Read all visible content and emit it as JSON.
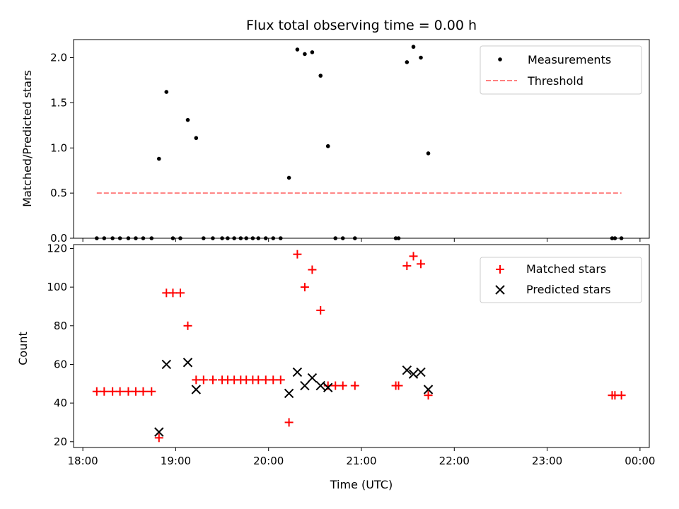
{
  "chart_data": [
    {
      "type": "scatter",
      "title": "Flux total observing time = 0.00 h",
      "xlabel": "",
      "ylabel": "Matched/Predicted stars",
      "ylim": [
        0,
        2.2
      ],
      "xlim": [
        17.9,
        24.1
      ],
      "yticks": [
        0.0,
        0.5,
        1.0,
        1.5,
        2.0
      ],
      "ytick_labels": [
        "0.0",
        "0.5",
        "1.0",
        "1.5",
        "2.0"
      ],
      "legend_position": "top-right",
      "series": [
        {
          "name": "Measurements",
          "marker": "dot",
          "color": "#000000",
          "x": [
            18.15,
            18.23,
            18.32,
            18.4,
            18.49,
            18.57,
            18.65,
            18.74,
            18.82,
            18.9,
            18.97,
            19.05,
            19.13,
            19.22,
            19.3,
            19.4,
            19.5,
            19.56,
            19.63,
            19.7,
            19.76,
            19.83,
            19.89,
            19.97,
            20.05,
            20.13,
            20.22,
            20.31,
            20.39,
            20.47,
            20.56,
            20.64,
            20.72,
            20.8,
            20.93,
            21.37,
            21.4,
            21.49,
            21.56,
            21.64,
            21.72,
            23.7,
            23.73,
            23.8
          ],
          "y": [
            0,
            0,
            0,
            0,
            0,
            0,
            0,
            0,
            0.88,
            1.62,
            0,
            0,
            1.31,
            1.11,
            0,
            0,
            0,
            0,
            0,
            0,
            0,
            0,
            0,
            0,
            0,
            0,
            0.67,
            2.09,
            2.04,
            2.06,
            1.8,
            1.02,
            0,
            0,
            0,
            0,
            0,
            1.95,
            2.12,
            2.0,
            0.94,
            0,
            0,
            0
          ]
        },
        {
          "name": "Threshold",
          "marker": "dashed-line",
          "color": "#ff8080",
          "x": [
            18.15,
            23.8
          ],
          "y": [
            0.5,
            0.5
          ]
        }
      ]
    },
    {
      "type": "scatter",
      "title": "",
      "xlabel": "Time (UTC)",
      "ylabel": "Count",
      "ylim": [
        17,
        122
      ],
      "xlim": [
        17.9,
        24.1
      ],
      "yticks": [
        20,
        40,
        60,
        80,
        100,
        120
      ],
      "ytick_labels": [
        "20",
        "40",
        "60",
        "80",
        "100",
        "120"
      ],
      "xticks": [
        18,
        19,
        20,
        21,
        22,
        23,
        24
      ],
      "xtick_labels": [
        "18:00",
        "19:00",
        "20:00",
        "21:00",
        "22:00",
        "23:00",
        "00:00"
      ],
      "legend_position": "top-right",
      "series": [
        {
          "name": "Matched stars",
          "marker": "plus",
          "color": "#ff0000",
          "x": [
            18.15,
            18.23,
            18.32,
            18.4,
            18.49,
            18.57,
            18.65,
            18.74,
            18.82,
            18.9,
            18.97,
            19.05,
            19.13,
            19.22,
            19.3,
            19.4,
            19.5,
            19.56,
            19.63,
            19.7,
            19.76,
            19.83,
            19.89,
            19.97,
            20.05,
            20.13,
            20.22,
            20.31,
            20.39,
            20.47,
            20.56,
            20.64,
            20.72,
            20.8,
            20.93,
            21.37,
            21.4,
            21.49,
            21.56,
            21.64,
            21.72,
            23.7,
            23.73,
            23.8
          ],
          "y": [
            46,
            46,
            46,
            46,
            46,
            46,
            46,
            46,
            22,
            97,
            97,
            97,
            80,
            52,
            52,
            52,
            52,
            52,
            52,
            52,
            52,
            52,
            52,
            52,
            52,
            52,
            30,
            117,
            100,
            109,
            88,
            49,
            49,
            49,
            49,
            49,
            49,
            111,
            116,
            112,
            44,
            44,
            44,
            44
          ]
        },
        {
          "name": "Predicted stars",
          "marker": "x",
          "color": "#000000",
          "x": [
            18.82,
            18.9,
            19.13,
            19.22,
            20.22,
            20.31,
            20.39,
            20.47,
            20.56,
            20.64,
            21.49,
            21.56,
            21.64,
            21.72
          ],
          "y": [
            25,
            60,
            61,
            47,
            45,
            56,
            49,
            53,
            49,
            48,
            57,
            55,
            56,
            47
          ]
        }
      ]
    }
  ]
}
